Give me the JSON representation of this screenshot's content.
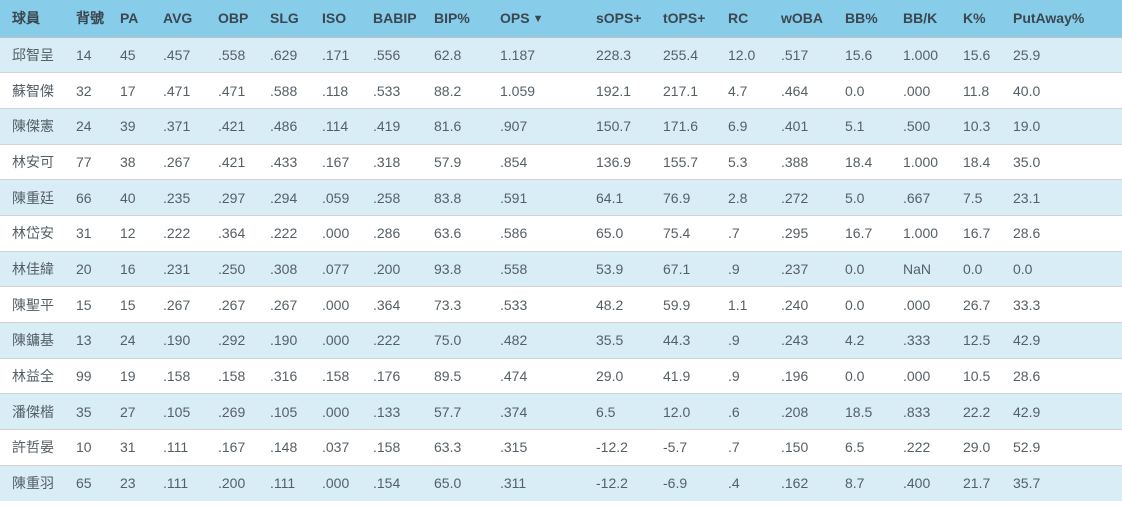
{
  "colors": {
    "header_bg": "#87cde9",
    "header_text": "#3a4750",
    "row_alt_bg": "#d9edf7",
    "row_bg": "#ffffff",
    "cell_text": "#555f66",
    "row_border": "#d2d2d2",
    "header_border": "#c0c0c0"
  },
  "table": {
    "sort_icon": "▼",
    "sorted_column": "OPS",
    "sort_direction": "desc",
    "columns": [
      {
        "label": "球員",
        "sorted": false
      },
      {
        "label": "背號",
        "sorted": false
      },
      {
        "label": "PA",
        "sorted": false
      },
      {
        "label": "AVG",
        "sorted": false
      },
      {
        "label": "OBP",
        "sorted": false
      },
      {
        "label": "SLG",
        "sorted": false
      },
      {
        "label": "ISO",
        "sorted": false
      },
      {
        "label": "BABIP",
        "sorted": false
      },
      {
        "label": "BIP%",
        "sorted": false
      },
      {
        "label": "OPS",
        "sorted": true
      },
      {
        "label": "sOPS+",
        "sorted": false
      },
      {
        "label": "tOPS+",
        "sorted": false
      },
      {
        "label": "RC",
        "sorted": false
      },
      {
        "label": "wOBA",
        "sorted": false
      },
      {
        "label": "BB%",
        "sorted": false
      },
      {
        "label": "BB/K",
        "sorted": false
      },
      {
        "label": "K%",
        "sorted": false
      },
      {
        "label": "PutAway%",
        "sorted": false
      }
    ],
    "rows": [
      [
        "邱智呈",
        "14",
        "45",
        ".457",
        ".558",
        ".629",
        ".171",
        ".556",
        "62.8",
        "1.187",
        "228.3",
        "255.4",
        "12.0",
        ".517",
        "15.6",
        "1.000",
        "15.6",
        "25.9"
      ],
      [
        "蘇智傑",
        "32",
        "17",
        ".471",
        ".471",
        ".588",
        ".118",
        ".533",
        "88.2",
        "1.059",
        "192.1",
        "217.1",
        "4.7",
        ".464",
        "0.0",
        ".000",
        "11.8",
        "40.0"
      ],
      [
        "陳傑憲",
        "24",
        "39",
        ".371",
        ".421",
        ".486",
        ".114",
        ".419",
        "81.6",
        ".907",
        "150.7",
        "171.6",
        "6.9",
        ".401",
        "5.1",
        ".500",
        "10.3",
        "19.0"
      ],
      [
        "林安可",
        "77",
        "38",
        ".267",
        ".421",
        ".433",
        ".167",
        ".318",
        "57.9",
        ".854",
        "136.9",
        "155.7",
        "5.3",
        ".388",
        "18.4",
        "1.000",
        "18.4",
        "35.0"
      ],
      [
        "陳重廷",
        "66",
        "40",
        ".235",
        ".297",
        ".294",
        ".059",
        ".258",
        "83.8",
        ".591",
        "64.1",
        "76.9",
        "2.8",
        ".272",
        "5.0",
        ".667",
        "7.5",
        "23.1"
      ],
      [
        "林岱安",
        "31",
        "12",
        ".222",
        ".364",
        ".222",
        ".000",
        ".286",
        "63.6",
        ".586",
        "65.0",
        "75.4",
        ".7",
        ".295",
        "16.7",
        "1.000",
        "16.7",
        "28.6"
      ],
      [
        "林佳緯",
        "20",
        "16",
        ".231",
        ".250",
        ".308",
        ".077",
        ".200",
        "93.8",
        ".558",
        "53.9",
        "67.1",
        ".9",
        ".237",
        "0.0",
        "NaN",
        "0.0",
        "0.0"
      ],
      [
        "陳聖平",
        "15",
        "15",
        ".267",
        ".267",
        ".267",
        ".000",
        ".364",
        "73.3",
        ".533",
        "48.2",
        "59.9",
        "1.1",
        ".240",
        "0.0",
        ".000",
        "26.7",
        "33.3"
      ],
      [
        "陳鏞基",
        "13",
        "24",
        ".190",
        ".292",
        ".190",
        ".000",
        ".222",
        "75.0",
        ".482",
        "35.5",
        "44.3",
        ".9",
        ".243",
        "4.2",
        ".333",
        "12.5",
        "42.9"
      ],
      [
        "林益全",
        "99",
        "19",
        ".158",
        ".158",
        ".316",
        ".158",
        ".176",
        "89.5",
        ".474",
        "29.0",
        "41.9",
        ".9",
        ".196",
        "0.0",
        ".000",
        "10.5",
        "28.6"
      ],
      [
        "潘傑楷",
        "35",
        "27",
        ".105",
        ".269",
        ".105",
        ".000",
        ".133",
        "57.7",
        ".374",
        "6.5",
        "12.0",
        ".6",
        ".208",
        "18.5",
        ".833",
        "22.2",
        "42.9"
      ],
      [
        "許哲晏",
        "10",
        "31",
        ".111",
        ".167",
        ".148",
        ".037",
        ".158",
        "63.3",
        ".315",
        "-12.2",
        "-5.7",
        ".7",
        ".150",
        "6.5",
        ".222",
        "29.0",
        "52.9"
      ],
      [
        "陳重羽",
        "65",
        "23",
        ".111",
        ".200",
        ".111",
        ".000",
        ".154",
        "65.0",
        ".311",
        "-12.2",
        "-6.9",
        ".4",
        ".162",
        "8.7",
        ".400",
        "21.7",
        "35.7"
      ]
    ]
  }
}
